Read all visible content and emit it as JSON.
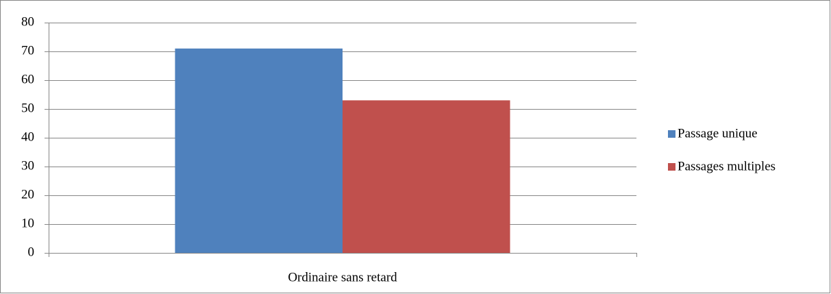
{
  "chart_data": {
    "type": "bar",
    "categories": [
      "Ordinaire sans retard"
    ],
    "series": [
      {
        "name": "Passage unique",
        "color": "#4f81bd",
        "values": [
          71
        ]
      },
      {
        "name": "Passages multiples",
        "color": "#c0504d",
        "values": [
          53
        ]
      }
    ],
    "ylim": [
      0,
      80
    ],
    "yticks": [
      0,
      10,
      20,
      30,
      40,
      50,
      60,
      70,
      80
    ],
    "grid": true,
    "legend": "right"
  }
}
